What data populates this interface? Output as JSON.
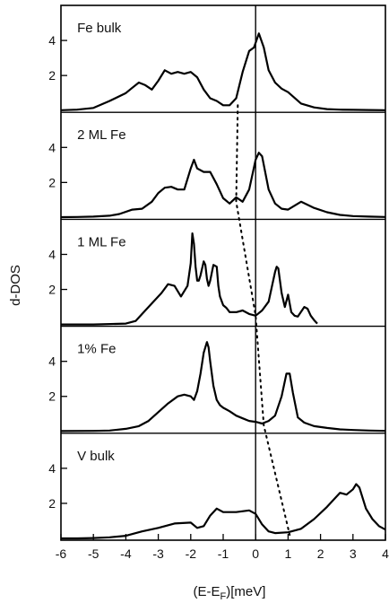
{
  "chart_data": {
    "type": "line",
    "xlabel": "(E-E",
    "xlabel_sub": "F",
    "xlabel_tail": ")[meV]",
    "ylabel": "d-DOS",
    "xlim": [
      -6,
      4
    ],
    "x_ticks": [
      "-6",
      "-5",
      "-4",
      "-3",
      "-2",
      "-1",
      "0",
      "1",
      "2",
      "3",
      "4"
    ],
    "y_ticks": [
      "2",
      "4"
    ],
    "ylim": [
      0,
      5.9
    ],
    "grid": false,
    "fermi_line_x": 0,
    "panels": [
      {
        "label": "Fe bulk",
        "series": {
          "x": [
            -6,
            -5.5,
            -5,
            -4.5,
            -4,
            -3.8,
            -3.6,
            -3.4,
            -3.2,
            -3,
            -2.8,
            -2.6,
            -2.4,
            -2.2,
            -2,
            -1.8,
            -1.6,
            -1.4,
            -1.2,
            -1,
            -0.8,
            -0.6,
            -0.4,
            -0.2,
            -0.05,
            0.1,
            0.25,
            0.4,
            0.6,
            0.8,
            1,
            1.4,
            1.8,
            2.2,
            2.6,
            3,
            3.5,
            4
          ],
          "y": [
            0.02,
            0.05,
            0.15,
            0.55,
            1.0,
            1.3,
            1.6,
            1.45,
            1.2,
            1.7,
            2.3,
            2.1,
            2.2,
            2.1,
            2.2,
            1.9,
            1.2,
            0.7,
            0.55,
            0.3,
            0.3,
            0.7,
            2.2,
            3.4,
            3.6,
            4.4,
            3.6,
            2.3,
            1.6,
            1.25,
            1.05,
            0.4,
            0.18,
            0.08,
            0.05,
            0.04,
            0.03,
            0.02
          ]
        },
        "shift_point": {
          "x": -0.55,
          "y": 0.3
        }
      },
      {
        "label": "2 ML Fe",
        "series": {
          "x": [
            -6,
            -5.5,
            -5,
            -4.5,
            -4.2,
            -3.8,
            -3.5,
            -3.2,
            -3,
            -2.8,
            -2.6,
            -2.4,
            -2.2,
            -2,
            -1.9,
            -1.8,
            -1.6,
            -1.4,
            -1.2,
            -1,
            -0.8,
            -0.6,
            -0.4,
            -0.2,
            0,
            0.1,
            0.2,
            0.4,
            0.6,
            0.8,
            1,
            1.4,
            1.8,
            2.2,
            2.6,
            3,
            3.5,
            4
          ],
          "y": [
            0.02,
            0.03,
            0.05,
            0.1,
            0.2,
            0.45,
            0.5,
            0.9,
            1.4,
            1.7,
            1.75,
            1.6,
            1.6,
            2.8,
            3.3,
            2.8,
            2.6,
            2.6,
            1.9,
            1.1,
            0.8,
            1.15,
            0.9,
            1.6,
            3.3,
            3.7,
            3.5,
            1.6,
            0.8,
            0.5,
            0.45,
            0.9,
            0.55,
            0.3,
            0.15,
            0.08,
            0.05,
            0.03
          ]
        },
        "shift_point": {
          "x": -0.6,
          "y": 0.9
        }
      },
      {
        "label": "1 ML Fe",
        "series": {
          "x": [
            -6,
            -5,
            -4,
            -3.7,
            -3.4,
            -3.1,
            -2.9,
            -2.7,
            -2.5,
            -2.3,
            -2.1,
            -2,
            -1.95,
            -1.9,
            -1.85,
            -1.8,
            -1.75,
            -1.7,
            -1.6,
            -1.55,
            -1.5,
            -1.45,
            -1.4,
            -1.3,
            -1.2,
            -1.15,
            -1.1,
            -1,
            -0.9,
            -0.8,
            -0.6,
            -0.4,
            -0.2,
            0,
            0.2,
            0.4,
            0.6,
            0.65,
            0.7,
            0.8,
            0.9,
            1,
            1.1,
            1.2,
            1.3,
            1.5,
            1.6,
            1.7,
            1.8,
            1.9
          ],
          "y": [
            0.0,
            0.0,
            0.05,
            0.2,
            0.8,
            1.4,
            1.8,
            2.3,
            2.2,
            1.6,
            2.2,
            3.5,
            5.2,
            4.6,
            3.3,
            2.5,
            2.5,
            2.8,
            3.6,
            3.4,
            2.6,
            2.2,
            2.5,
            3.4,
            3.3,
            2.2,
            1.6,
            1.1,
            0.95,
            0.7,
            0.7,
            0.8,
            0.6,
            0.5,
            0.8,
            1.3,
            3.0,
            3.3,
            3.2,
            1.8,
            1.0,
            1.7,
            0.7,
            0.5,
            0.45,
            1.0,
            0.9,
            0.5,
            0.25,
            0.05
          ]
        },
        "shift_point": {
          "x": 0.0,
          "y": 0.5
        }
      },
      {
        "label": "1% Fe",
        "series": {
          "x": [
            -6,
            -5,
            -4.5,
            -4,
            -3.6,
            -3.3,
            -3,
            -2.7,
            -2.4,
            -2.2,
            -2,
            -1.9,
            -1.8,
            -1.7,
            -1.6,
            -1.5,
            -1.45,
            -1.4,
            -1.3,
            -1.2,
            -1.1,
            -1,
            -0.8,
            -0.6,
            -0.4,
            -0.2,
            0,
            0.2,
            0.4,
            0.6,
            0.8,
            0.95,
            1.05,
            1.15,
            1.3,
            1.5,
            1.8,
            2.2,
            2.6,
            3,
            3.5,
            4
          ],
          "y": [
            0.02,
            0.03,
            0.05,
            0.15,
            0.3,
            0.6,
            1.1,
            1.6,
            2.0,
            2.1,
            2.0,
            1.8,
            2.3,
            3.3,
            4.5,
            5.1,
            4.8,
            4.0,
            2.6,
            1.8,
            1.5,
            1.35,
            1.15,
            0.9,
            0.75,
            0.6,
            0.55,
            0.45,
            0.6,
            0.9,
            2.0,
            3.3,
            3.3,
            2.2,
            0.8,
            0.5,
            0.3,
            0.2,
            0.12,
            0.08,
            0.05,
            0.03
          ]
        },
        "shift_point": {
          "x": 0.25,
          "y": 0.35
        }
      },
      {
        "label": "V bulk",
        "series": {
          "x": [
            -6,
            -5.5,
            -5,
            -4.5,
            -4,
            -3.5,
            -3,
            -2.5,
            -2,
            -1.8,
            -1.6,
            -1.4,
            -1.2,
            -1,
            -0.6,
            -0.2,
            0,
            0.2,
            0.4,
            0.6,
            1,
            1.4,
            1.8,
            2.2,
            2.4,
            2.6,
            2.8,
            3,
            3.1,
            3.2,
            3.4,
            3.6,
            3.8,
            4
          ],
          "y": [
            0.0,
            0.0,
            0.02,
            0.06,
            0.15,
            0.4,
            0.6,
            0.85,
            0.9,
            0.6,
            0.7,
            1.3,
            1.7,
            1.5,
            1.5,
            1.6,
            1.4,
            0.8,
            0.4,
            0.3,
            0.35,
            0.55,
            1.1,
            1.8,
            2.2,
            2.6,
            2.5,
            2.8,
            3.1,
            2.9,
            1.7,
            1.1,
            0.7,
            0.5
          ]
        },
        "shift_point": {
          "x": 1.05,
          "y": 0.2
        }
      }
    ]
  }
}
